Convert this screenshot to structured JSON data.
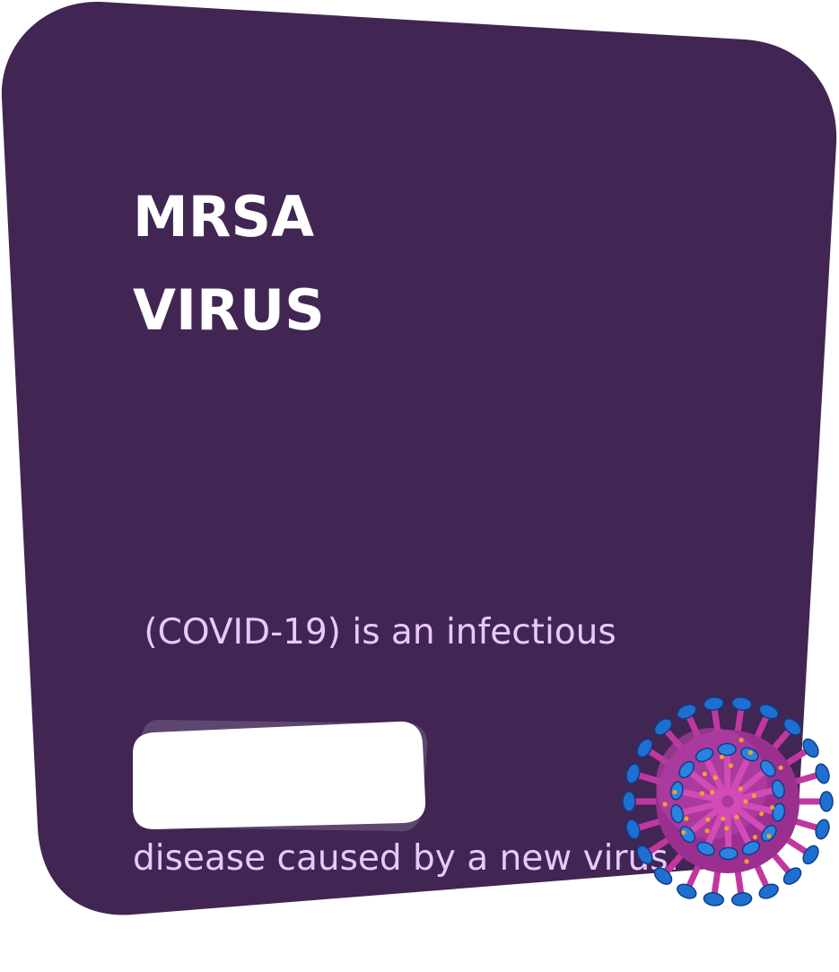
{
  "card": {
    "title_line_1": "MRSA",
    "title_line_2": "VIRUS",
    "description_line_1": " (COVID-19) is an infectious",
    "description_line_2": "disease caused by a new virus.",
    "button_label": ""
  },
  "colors": {
    "card_background": "#412553",
    "title_text": "#ffffff",
    "description_text": "#e7c9fb",
    "button_fill": "#ffffff",
    "button_shadow": "#5d4670",
    "virus_body": "#9b2f8f",
    "virus_spikes": "#1f6fd1"
  },
  "icons": {
    "virus": "coronavirus-icon"
  }
}
